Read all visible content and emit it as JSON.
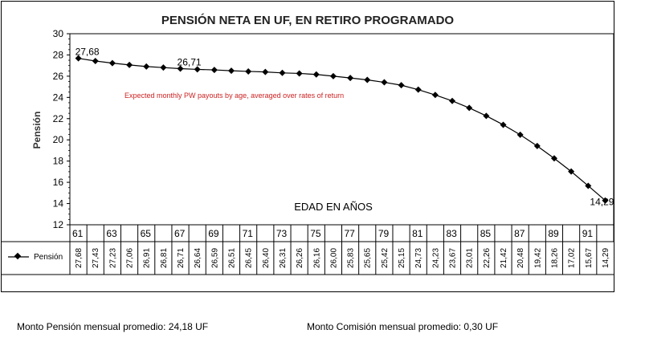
{
  "chart_data": {
    "type": "line",
    "title": "PENSIÓN NETA EN UF, EN RETIRO PROGRAMADO",
    "subtitle": "Expected monthly PW payouts by age, averaged over rates of return",
    "ylabel": "Pensión",
    "xlabel": "EDAD EN AÑOS",
    "ylim": [
      12,
      30
    ],
    "yticks": [
      12,
      14,
      16,
      18,
      20,
      22,
      24,
      26,
      28,
      30
    ],
    "x": [
      61,
      62,
      63,
      64,
      65,
      66,
      67,
      68,
      69,
      70,
      71,
      72,
      73,
      74,
      75,
      76,
      77,
      78,
      79,
      80,
      81,
      82,
      83,
      84,
      85,
      86,
      87,
      88,
      89,
      90,
      91,
      92
    ],
    "x_tick_labels": [
      "61",
      "63",
      "65",
      "67",
      "69",
      "71",
      "73",
      "75",
      "77",
      "79",
      "81",
      "83",
      "85",
      "87",
      "89",
      "91"
    ],
    "series": [
      {
        "name": "Pensión",
        "values": [
          27.68,
          27.43,
          27.23,
          27.06,
          26.91,
          26.81,
          26.71,
          26.64,
          26.59,
          26.51,
          26.45,
          26.4,
          26.31,
          26.26,
          26.16,
          26.0,
          25.83,
          25.65,
          25.42,
          25.15,
          24.73,
          24.23,
          23.67,
          23.01,
          22.26,
          21.42,
          20.48,
          19.42,
          18.26,
          17.02,
          15.67,
          14.29
        ],
        "table_labels": [
          "27,68",
          "27,43",
          "27,23",
          "27,06",
          "26,91",
          "26,81",
          "26,71",
          "26,64",
          "26,59",
          "26,51",
          "26,45",
          "26,40",
          "26,31",
          "26,26",
          "26,16",
          "26,00",
          "25,83",
          "25,65",
          "25,42",
          "25,15",
          "24,73",
          "24,23",
          "23,67",
          "23,01",
          "22,26",
          "21,42",
          "20,48",
          "19,42",
          "18,26",
          "17,02",
          "15,67",
          "14,29"
        ]
      }
    ],
    "point_labels": [
      {
        "index": 0,
        "text": "27,68"
      },
      {
        "index": 6,
        "text": "26,71"
      },
      {
        "index": 31,
        "text": "14,29"
      }
    ],
    "colors": {
      "line": "#000000",
      "subtitle": "#cc2222"
    },
    "legend": "data-table-left",
    "grid": false
  },
  "footer": {
    "pension_label": "Monto Pensión mensual promedio: 24,18  UF",
    "comision_label": "Monto Comisión mensual promedio: 0,30 UF"
  }
}
